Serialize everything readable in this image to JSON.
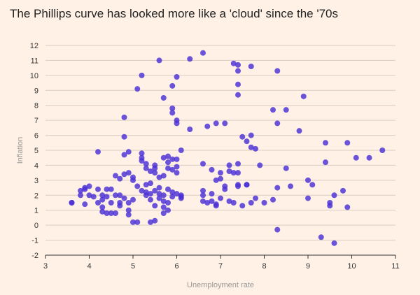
{
  "chart_data": {
    "type": "scatter",
    "title": "The Phillips curve has looked more like a 'cloud' since the '70s",
    "xlabel": "Unemployment rate",
    "ylabel": "Inflation",
    "xlim": [
      3,
      11
    ],
    "ylim": [
      -2,
      12
    ],
    "xticks": [
      3,
      4,
      5,
      6,
      7,
      8,
      9,
      10,
      11
    ],
    "yticks": [
      -2,
      -1,
      0,
      1,
      2,
      3,
      4,
      5,
      6,
      7,
      8,
      9,
      10,
      11,
      12
    ],
    "grid": "horizontal",
    "marker_color": "#4a2fd6",
    "points": [
      [
        3.6,
        1.5
      ],
      [
        3.6,
        1.5
      ],
      [
        3.8,
        2.0
      ],
      [
        3.8,
        2.3
      ],
      [
        3.9,
        2.4
      ],
      [
        3.9,
        1.4
      ],
      [
        3.9,
        2.5
      ],
      [
        4.0,
        2.6
      ],
      [
        4.0,
        2.0
      ],
      [
        4.1,
        1.9
      ],
      [
        4.2,
        1.5
      ],
      [
        4.2,
        2.4
      ],
      [
        4.2,
        4.9
      ],
      [
        4.3,
        1.2
      ],
      [
        4.3,
        1.7
      ],
      [
        4.3,
        0.9
      ],
      [
        4.3,
        2.0
      ],
      [
        4.4,
        0.8
      ],
      [
        4.4,
        2.4
      ],
      [
        4.4,
        1.9
      ],
      [
        4.5,
        0.8
      ],
      [
        4.5,
        2.4
      ],
      [
        4.5,
        1.5
      ],
      [
        4.6,
        0.8
      ],
      [
        4.6,
        2.0
      ],
      [
        4.6,
        3.3
      ],
      [
        4.7,
        3.1
      ],
      [
        4.7,
        1.5
      ],
      [
        4.7,
        1.3
      ],
      [
        4.7,
        2.0
      ],
      [
        4.8,
        7.2
      ],
      [
        4.8,
        5.9
      ],
      [
        4.8,
        4.7
      ],
      [
        4.8,
        3.4
      ],
      [
        4.8,
        1.8
      ],
      [
        4.9,
        1.0
      ],
      [
        4.9,
        0.7
      ],
      [
        4.9,
        4.9
      ],
      [
        4.9,
        3.5
      ],
      [
        4.9,
        1.5
      ],
      [
        5.0,
        3.2
      ],
      [
        5.0,
        3.0
      ],
      [
        5.0,
        0.2
      ],
      [
        5.0,
        1.7
      ],
      [
        5.1,
        9.1
      ],
      [
        5.1,
        2.6
      ],
      [
        5.1,
        0.2
      ],
      [
        5.2,
        10.0
      ],
      [
        5.2,
        4.8
      ],
      [
        5.2,
        4.5
      ],
      [
        5.2,
        4.3
      ],
      [
        5.2,
        2.3
      ],
      [
        5.3,
        4.1
      ],
      [
        5.3,
        3.8
      ],
      [
        5.3,
        2.2
      ],
      [
        5.3,
        2.7
      ],
      [
        5.3,
        2.0
      ],
      [
        5.4,
        3.6
      ],
      [
        5.4,
        2.8
      ],
      [
        5.4,
        2.1
      ],
      [
        5.4,
        1.7
      ],
      [
        5.4,
        0.2
      ],
      [
        5.5,
        4.0
      ],
      [
        5.5,
        3.8
      ],
      [
        5.5,
        3.5
      ],
      [
        5.5,
        2.3
      ],
      [
        5.5,
        1.3
      ],
      [
        5.5,
        0.3
      ],
      [
        5.6,
        11.0
      ],
      [
        5.6,
        3.2
      ],
      [
        5.6,
        2.5
      ],
      [
        5.6,
        2.1
      ],
      [
        5.6,
        1.8
      ],
      [
        5.7,
        8.5
      ],
      [
        5.7,
        4.5
      ],
      [
        5.7,
        3.3
      ],
      [
        5.7,
        2.0
      ],
      [
        5.7,
        1.6
      ],
      [
        5.7,
        1.2
      ],
      [
        5.7,
        0.8
      ],
      [
        5.8,
        4.6
      ],
      [
        5.8,
        4.2
      ],
      [
        5.8,
        3.8
      ],
      [
        5.8,
        2.4
      ],
      [
        5.8,
        1.5
      ],
      [
        5.8,
        1.0
      ],
      [
        5.9,
        9.3
      ],
      [
        5.9,
        7.8
      ],
      [
        5.9,
        7.5
      ],
      [
        5.9,
        4.4
      ],
      [
        5.9,
        3.7
      ],
      [
        5.9,
        2.2
      ],
      [
        5.9,
        1.9
      ],
      [
        6.0,
        9.9
      ],
      [
        6.0,
        7.0
      ],
      [
        6.0,
        6.8
      ],
      [
        6.0,
        4.4
      ],
      [
        6.0,
        3.9
      ],
      [
        6.0,
        3.5
      ],
      [
        6.0,
        2.1
      ],
      [
        6.1,
        5.0
      ],
      [
        6.1,
        2.0
      ],
      [
        6.1,
        1.8
      ],
      [
        6.1,
        1.9
      ],
      [
        6.3,
        11.1
      ],
      [
        6.3,
        6.4
      ],
      [
        6.6,
        11.5
      ],
      [
        6.6,
        4.1
      ],
      [
        6.6,
        2.3
      ],
      [
        6.6,
        2.0
      ],
      [
        6.6,
        1.6
      ],
      [
        6.7,
        6.6
      ],
      [
        6.7,
        1.5
      ],
      [
        6.8,
        3.7
      ],
      [
        6.8,
        2.1
      ],
      [
        6.8,
        1.6
      ],
      [
        6.9,
        6.8
      ],
      [
        6.9,
        3.0
      ],
      [
        6.9,
        1.4
      ],
      [
        6.9,
        1.3
      ],
      [
        7.0,
        3.5
      ],
      [
        7.0,
        3.1
      ],
      [
        7.0,
        1.8
      ],
      [
        7.1,
        6.8
      ],
      [
        7.1,
        2.6
      ],
      [
        7.1,
        2.4
      ],
      [
        7.2,
        4.0
      ],
      [
        7.2,
        3.6
      ],
      [
        7.2,
        1.6
      ],
      [
        7.3,
        10.8
      ],
      [
        7.3,
        3.5
      ],
      [
        7.3,
        1.5
      ],
      [
        7.4,
        10.7
      ],
      [
        7.4,
        10.3
      ],
      [
        7.4,
        9.4
      ],
      [
        7.4,
        8.7
      ],
      [
        7.4,
        4.1
      ],
      [
        7.4,
        3.5
      ],
      [
        7.4,
        2.7
      ],
      [
        7.4,
        2.6
      ],
      [
        7.5,
        5.9
      ],
      [
        7.5,
        1.3
      ],
      [
        7.6,
        5.6
      ],
      [
        7.6,
        2.7
      ],
      [
        7.6,
        2.7
      ],
      [
        7.7,
        10.6
      ],
      [
        7.7,
        6.0
      ],
      [
        7.7,
        5.2
      ],
      [
        7.7,
        1.5
      ],
      [
        7.8,
        5.1
      ],
      [
        7.8,
        1.8
      ],
      [
        7.9,
        4.0
      ],
      [
        8.0,
        1.5
      ],
      [
        8.2,
        7.7
      ],
      [
        8.2,
        1.7
      ],
      [
        8.3,
        10.3
      ],
      [
        8.3,
        6.8
      ],
      [
        8.3,
        2.5
      ],
      [
        8.3,
        -0.3
      ],
      [
        8.5,
        7.7
      ],
      [
        8.5,
        3.8
      ],
      [
        8.6,
        2.6
      ],
      [
        8.8,
        6.3
      ],
      [
        8.9,
        8.6
      ],
      [
        9.0,
        3.0
      ],
      [
        9.0,
        1.8
      ],
      [
        9.1,
        2.7
      ],
      [
        9.3,
        -0.8
      ],
      [
        9.4,
        5.5
      ],
      [
        9.4,
        4.2
      ],
      [
        9.5,
        1.5
      ],
      [
        9.5,
        1.3
      ],
      [
        9.6,
        2.0
      ],
      [
        9.6,
        -1.2
      ],
      [
        9.8,
        2.3
      ],
      [
        9.9,
        5.5
      ],
      [
        9.9,
        1.2
      ],
      [
        10.1,
        4.5
      ],
      [
        10.4,
        4.5
      ],
      [
        10.7,
        5.0
      ]
    ]
  }
}
